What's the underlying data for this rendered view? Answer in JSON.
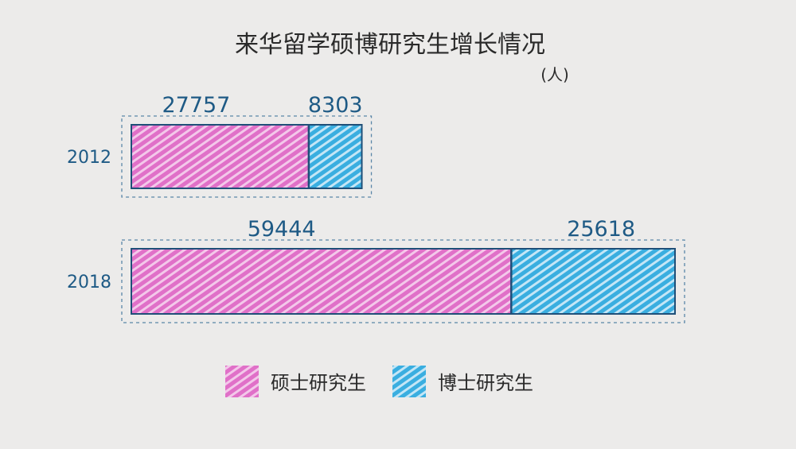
{
  "chart_data": {
    "type": "bar",
    "orientation": "horizontal",
    "stacked": true,
    "title": "来华留学硕博研究生增长情况",
    "unit": "(人)",
    "categories": [
      "2012",
      "2018"
    ],
    "series": [
      {
        "name": "硕士研究生",
        "values": [
          27757,
          59444
        ],
        "color": "#e070c8"
      },
      {
        "name": "博士研究生",
        "values": [
          8303,
          25618
        ],
        "color": "#3aaee0"
      }
    ],
    "legend": "bottom",
    "grid": false
  }
}
